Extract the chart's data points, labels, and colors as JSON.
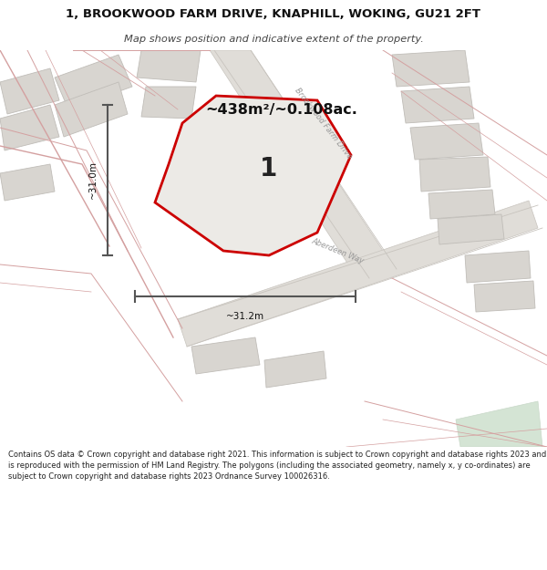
{
  "title_line1": "1, BROOKWOOD FARM DRIVE, KNAPHILL, WOKING, GU21 2FT",
  "title_line2": "Map shows position and indicative extent of the property.",
  "area_text": "~438m²/~0.108ac.",
  "label_number": "1",
  "dim_vertical": "~31.0m",
  "dim_horizontal": "~31.2m",
  "street_label1": "Brookwood Farm Drive",
  "street_label2": "Aberdeen Way",
  "footer_text": "Contains OS data © Crown copyright and database right 2021. This information is subject to Crown copyright and database rights 2023 and is reproduced with the permission of HM Land Registry. The polygons (including the associated geometry, namely x, y co-ordinates) are subject to Crown copyright and database rights 2023 Ordnance Survey 100026316.",
  "bg_color": "#f2f0ed",
  "footer_bg": "#ffffff",
  "road_gray_fill": "#e0ddd8",
  "road_gray_edge": "#c8c4be",
  "plot_fill": "#eceae6",
  "plot_outline": "#cc0000",
  "building_fill": "#d8d5d0",
  "building_edge": "#c0bdb8",
  "pink_road": "#e8c4c4",
  "pink_road_edge": "#d4a0a0",
  "green_fill": "#d4e4d4",
  "dim_color": "#555555",
  "text_dark": "#111111",
  "text_gray": "#999999",
  "title_color": "#111111",
  "subtitle_color": "#444444"
}
